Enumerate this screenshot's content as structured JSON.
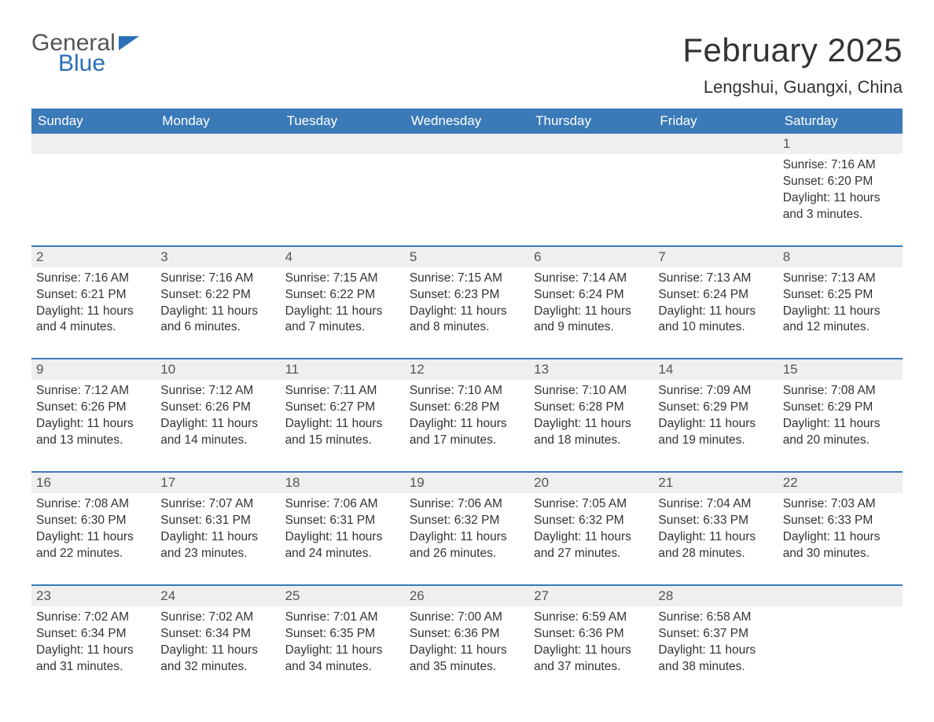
{
  "brand": {
    "word1": "General",
    "word2": "Blue",
    "accent_color": "#2a70b8"
  },
  "title": "February 2025",
  "location": "Lengshui, Guangxi, China",
  "colors": {
    "header_bg": "#3a7ab8",
    "header_text": "#ffffff",
    "daynum_bg": "#efefef",
    "row_border": "#3a7ab8",
    "body_text": "#333333",
    "page_bg": "#ffffff"
  },
  "typography": {
    "title_fontsize": 42,
    "location_fontsize": 22,
    "header_fontsize": 17,
    "daynum_fontsize": 17,
    "cell_fontsize": 15.5
  },
  "weekdays": [
    "Sunday",
    "Monday",
    "Tuesday",
    "Wednesday",
    "Thursday",
    "Friday",
    "Saturday"
  ],
  "labels": {
    "sunrise": "Sunrise:",
    "sunset": "Sunset:",
    "daylight": "Daylight:"
  },
  "weeks": [
    [
      null,
      null,
      null,
      null,
      null,
      null,
      {
        "d": "1",
        "sunrise": "7:16 AM",
        "sunset": "6:20 PM",
        "daylight": "11 hours and 3 minutes."
      }
    ],
    [
      {
        "d": "2",
        "sunrise": "7:16 AM",
        "sunset": "6:21 PM",
        "daylight": "11 hours and 4 minutes."
      },
      {
        "d": "3",
        "sunrise": "7:16 AM",
        "sunset": "6:22 PM",
        "daylight": "11 hours and 6 minutes."
      },
      {
        "d": "4",
        "sunrise": "7:15 AM",
        "sunset": "6:22 PM",
        "daylight": "11 hours and 7 minutes."
      },
      {
        "d": "5",
        "sunrise": "7:15 AM",
        "sunset": "6:23 PM",
        "daylight": "11 hours and 8 minutes."
      },
      {
        "d": "6",
        "sunrise": "7:14 AM",
        "sunset": "6:24 PM",
        "daylight": "11 hours and 9 minutes."
      },
      {
        "d": "7",
        "sunrise": "7:13 AM",
        "sunset": "6:24 PM",
        "daylight": "11 hours and 10 minutes."
      },
      {
        "d": "8",
        "sunrise": "7:13 AM",
        "sunset": "6:25 PM",
        "daylight": "11 hours and 12 minutes."
      }
    ],
    [
      {
        "d": "9",
        "sunrise": "7:12 AM",
        "sunset": "6:26 PM",
        "daylight": "11 hours and 13 minutes."
      },
      {
        "d": "10",
        "sunrise": "7:12 AM",
        "sunset": "6:26 PM",
        "daylight": "11 hours and 14 minutes."
      },
      {
        "d": "11",
        "sunrise": "7:11 AM",
        "sunset": "6:27 PM",
        "daylight": "11 hours and 15 minutes."
      },
      {
        "d": "12",
        "sunrise": "7:10 AM",
        "sunset": "6:28 PM",
        "daylight": "11 hours and 17 minutes."
      },
      {
        "d": "13",
        "sunrise": "7:10 AM",
        "sunset": "6:28 PM",
        "daylight": "11 hours and 18 minutes."
      },
      {
        "d": "14",
        "sunrise": "7:09 AM",
        "sunset": "6:29 PM",
        "daylight": "11 hours and 19 minutes."
      },
      {
        "d": "15",
        "sunrise": "7:08 AM",
        "sunset": "6:29 PM",
        "daylight": "11 hours and 20 minutes."
      }
    ],
    [
      {
        "d": "16",
        "sunrise": "7:08 AM",
        "sunset": "6:30 PM",
        "daylight": "11 hours and 22 minutes."
      },
      {
        "d": "17",
        "sunrise": "7:07 AM",
        "sunset": "6:31 PM",
        "daylight": "11 hours and 23 minutes."
      },
      {
        "d": "18",
        "sunrise": "7:06 AM",
        "sunset": "6:31 PM",
        "daylight": "11 hours and 24 minutes."
      },
      {
        "d": "19",
        "sunrise": "7:06 AM",
        "sunset": "6:32 PM",
        "daylight": "11 hours and 26 minutes."
      },
      {
        "d": "20",
        "sunrise": "7:05 AM",
        "sunset": "6:32 PM",
        "daylight": "11 hours and 27 minutes."
      },
      {
        "d": "21",
        "sunrise": "7:04 AM",
        "sunset": "6:33 PM",
        "daylight": "11 hours and 28 minutes."
      },
      {
        "d": "22",
        "sunrise": "7:03 AM",
        "sunset": "6:33 PM",
        "daylight": "11 hours and 30 minutes."
      }
    ],
    [
      {
        "d": "23",
        "sunrise": "7:02 AM",
        "sunset": "6:34 PM",
        "daylight": "11 hours and 31 minutes."
      },
      {
        "d": "24",
        "sunrise": "7:02 AM",
        "sunset": "6:34 PM",
        "daylight": "11 hours and 32 minutes."
      },
      {
        "d": "25",
        "sunrise": "7:01 AM",
        "sunset": "6:35 PM",
        "daylight": "11 hours and 34 minutes."
      },
      {
        "d": "26",
        "sunrise": "7:00 AM",
        "sunset": "6:36 PM",
        "daylight": "11 hours and 35 minutes."
      },
      {
        "d": "27",
        "sunrise": "6:59 AM",
        "sunset": "6:36 PM",
        "daylight": "11 hours and 37 minutes."
      },
      {
        "d": "28",
        "sunrise": "6:58 AM",
        "sunset": "6:37 PM",
        "daylight": "11 hours and 38 minutes."
      },
      null
    ]
  ]
}
